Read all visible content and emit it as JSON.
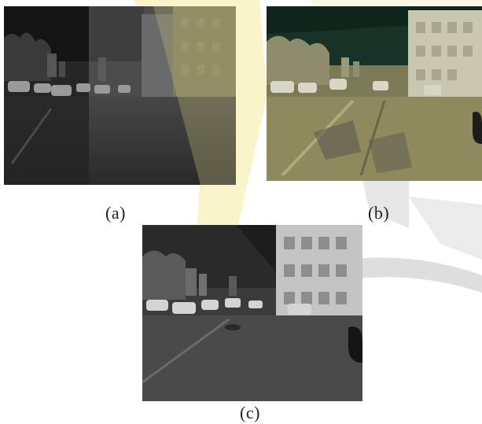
{
  "figure": {
    "panels": [
      {
        "id": "a",
        "caption": "(a)"
      },
      {
        "id": "b",
        "caption": "(b)"
      },
      {
        "id": "c",
        "caption": "(c)"
      }
    ]
  },
  "colors": {
    "background": "#ffffff",
    "watermark_yellow": "#f6efb0",
    "watermark_gray": "#c9c9c9",
    "panel_b_sky": "#173226"
  }
}
